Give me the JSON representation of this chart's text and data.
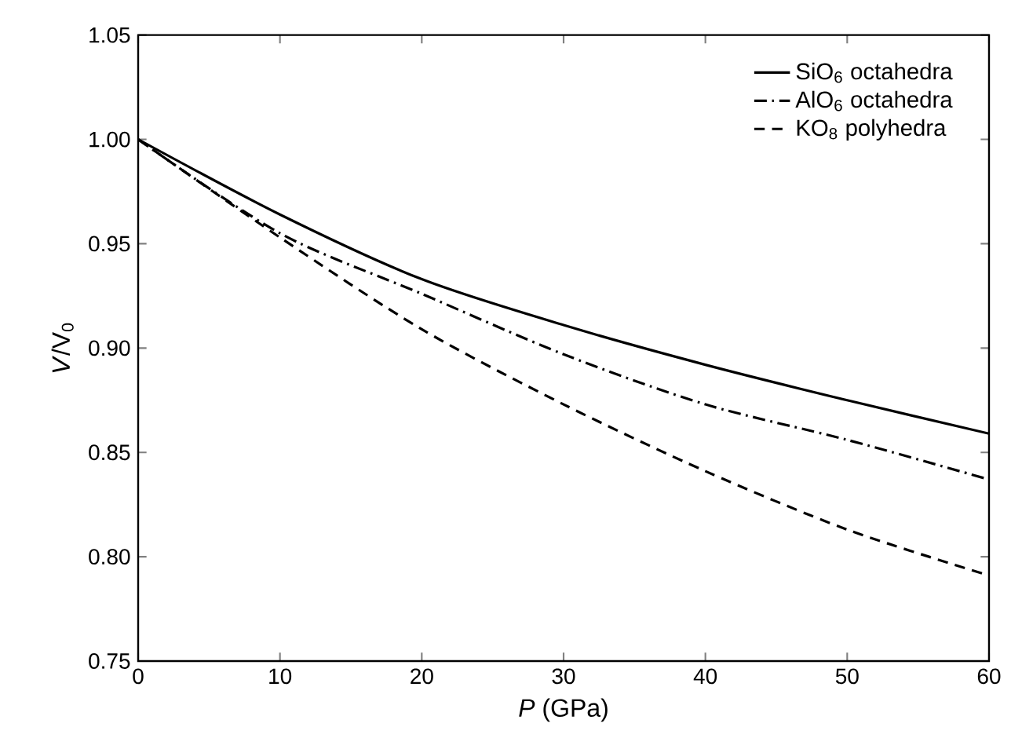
{
  "chart_data": {
    "type": "line",
    "xlabel": "*P* (GPa)",
    "ylabel": "*V*/V$_{0}$",
    "x": [
      0,
      10,
      20,
      30,
      40,
      50,
      60
    ],
    "series": [
      {
        "name": "SiO$_{6}$ octahedra",
        "color": "#000000",
        "line_style": "solid",
        "values": [
          1.0,
          0.964,
          0.933,
          0.911,
          0.892,
          0.875,
          0.859
        ]
      },
      {
        "name": "AlO$_{6}$ octahedra",
        "color": "#000000",
        "line_style": "dashdot",
        "values": [
          1.0,
          0.955,
          0.926,
          0.897,
          0.873,
          0.856,
          0.837
        ]
      },
      {
        "name": "KO$_{8}$ polyhedra",
        "color": "#000000",
        "line_style": "dashed",
        "values": [
          1.0,
          0.953,
          0.909,
          0.873,
          0.841,
          0.813,
          0.791
        ]
      }
    ],
    "xlim": [
      0,
      60
    ],
    "ylim": [
      0.75,
      1.05
    ],
    "xticks": [
      0,
      10,
      20,
      30,
      40,
      50,
      60
    ],
    "yticks": [
      {
        "value": 0.75,
        "label": "0.75"
      },
      {
        "value": 0.8,
        "label": "0.80"
      },
      {
        "value": 0.85,
        "label": "0.85"
      },
      {
        "value": 0.9,
        "label": "0.90"
      },
      {
        "value": 0.95,
        "label": "0.95"
      },
      {
        "value": 1.0,
        "label": "1.00"
      },
      {
        "value": 1.05,
        "label": "1.05"
      }
    ],
    "grid": false,
    "legend": "top right",
    "marker": "none"
  }
}
